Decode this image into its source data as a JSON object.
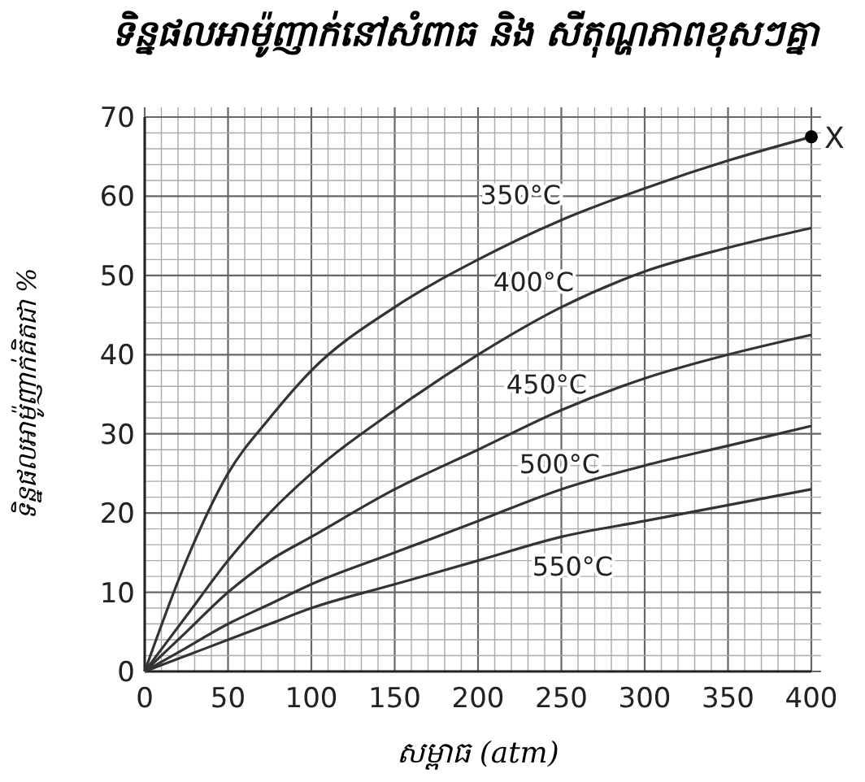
{
  "chart_data": {
    "type": "line",
    "title": "ទិន្នផលអាម៉ូញាក់នៅសំពាធ និង សីតុណ្ហភាពខុសៗគ្នា",
    "xlabel": "សម្ពាធ (atm)",
    "ylabel": "ទិន្នផលអាម៉ូញាក់គិតជា %",
    "x": [
      0,
      25,
      50,
      75,
      100,
      150,
      200,
      250,
      300,
      350,
      400
    ],
    "series": [
      {
        "name": "350°C",
        "color": "#333333",
        "values": [
          0,
          14,
          25,
          32,
          38,
          46,
          52,
          57,
          61,
          64.5,
          67.5
        ]
      },
      {
        "name": "400°C",
        "color": "#333333",
        "values": [
          0,
          7,
          14,
          20,
          25,
          33,
          40,
          46,
          50.5,
          53.5,
          56
        ]
      },
      {
        "name": "450°C",
        "color": "#333333",
        "values": [
          0,
          5,
          10,
          14,
          17,
          23,
          28,
          33,
          37,
          40,
          42.5
        ]
      },
      {
        "name": "500°C",
        "color": "#333333",
        "values": [
          0,
          3,
          6,
          8.5,
          11,
          15,
          19,
          23,
          26,
          28.5,
          31
        ]
      },
      {
        "name": "550°C",
        "color": "#333333",
        "values": [
          0,
          2,
          4,
          6,
          8,
          11,
          14,
          17,
          19,
          21,
          23
        ]
      },
      {
        "type": "scatter",
        "marker": "circle",
        "color": "#000000",
        "x": [
          400
        ],
        "values": [
          67.5
        ]
      }
    ],
    "annotations": [
      {
        "text": "X",
        "x": 400,
        "y": 67.5
      }
    ],
    "xlim": [
      0,
      400
    ],
    "ylim": [
      0,
      70
    ],
    "xticks": [
      0,
      {
        "value": 10,
        "label": null
      },
      {
        "value": 20,
        "label": null
      },
      {
        "value": 30,
        "label": null
      },
      {
        "value": 40,
        "label": null
      },
      50,
      {
        "value": 60,
        "label": null
      },
      {
        "value": 70,
        "label": null
      },
      {
        "value": 80,
        "label": null
      },
      {
        "value": 90,
        "label": null
      },
      100,
      {
        "value": 110,
        "label": null
      },
      {
        "value": 120,
        "label": null
      },
      {
        "value": 130,
        "label": null
      },
      {
        "value": 140,
        "label": null
      },
      150,
      {
        "value": 160,
        "label": null
      },
      {
        "value": 170,
        "label": null
      },
      {
        "value": 180,
        "label": null
      },
      {
        "value": 190,
        "label": null
      },
      200,
      {
        "value": 210,
        "label": null
      },
      {
        "value": 220,
        "label": null
      },
      {
        "value": 230,
        "label": null
      },
      {
        "value": 240,
        "label": null
      },
      250,
      {
        "value": 260,
        "label": null
      },
      {
        "value": 270,
        "label": null
      },
      {
        "value": 280,
        "label": null
      },
      {
        "value": 290,
        "label": null
      },
      300,
      {
        "value": 310,
        "label": null
      },
      {
        "value": 320,
        "label": null
      },
      {
        "value": 330,
        "label": null
      },
      {
        "value": 340,
        "label": null
      },
      350,
      {
        "value": 360,
        "label": null
      },
      {
        "value": 370,
        "label": null
      },
      {
        "value": 380,
        "label": null
      },
      {
        "value": 390,
        "label": null
      },
      400
    ],
    "yticks": [
      0,
      {
        "value": 2,
        "label": null
      },
      {
        "value": 4,
        "label": null
      },
      {
        "value": 6,
        "label": null
      },
      {
        "value": 8,
        "label": null
      },
      10,
      {
        "value": 12,
        "label": null
      },
      {
        "value": 14,
        "label": null
      },
      {
        "value": 16,
        "label": null
      },
      {
        "value": 18,
        "label": null
      },
      20,
      {
        "value": 22,
        "label": null
      },
      {
        "value": 24,
        "label": null
      },
      {
        "value": 26,
        "label": null
      },
      {
        "value": 28,
        "label": null
      },
      30,
      {
        "value": 32,
        "label": null
      },
      {
        "value": 34,
        "label": null
      },
      {
        "value": 36,
        "label": null
      },
      {
        "value": 38,
        "label": null
      },
      40,
      {
        "value": 42,
        "label": null
      },
      {
        "value": 44,
        "label": null
      },
      {
        "value": 46,
        "label": null
      },
      {
        "value": 48,
        "label": null
      },
      50,
      {
        "value": 52,
        "label": null
      },
      {
        "value": 54,
        "label": null
      },
      {
        "value": 56,
        "label": null
      },
      {
        "value": 58,
        "label": null
      },
      60,
      {
        "value": 62,
        "label": null
      },
      {
        "value": 64,
        "label": null
      },
      {
        "value": 66,
        "label": null
      },
      {
        "value": 68,
        "label": null
      },
      70
    ],
    "grid": true,
    "line_style": "solid"
  }
}
